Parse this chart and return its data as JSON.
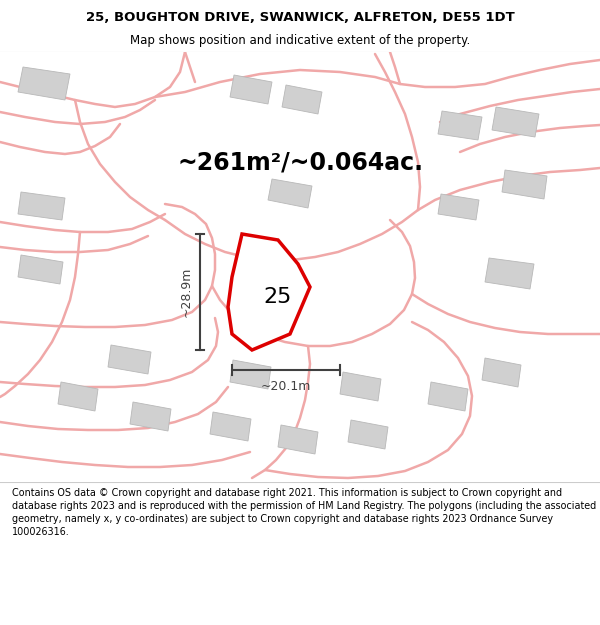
{
  "title_line1": "25, BOUGHTON DRIVE, SWANWICK, ALFRETON, DE55 1DT",
  "title_line2": "Map shows position and indicative extent of the property.",
  "area_text": "~261m²/~0.064ac.",
  "label_number": "25",
  "dim_height": "~28.9m",
  "dim_width": "~20.1m",
  "footer_text": "Contains OS data © Crown copyright and database right 2021. This information is subject to Crown copyright and database rights 2023 and is reproduced with the permission of HM Land Registry. The polygons (including the associated geometry, namely x, y co-ordinates) are subject to Crown copyright and database rights 2023 Ordnance Survey 100026316.",
  "bg_color": "#ffffff",
  "map_bg": "#f5f5f5",
  "road_color": "#f0a8a8",
  "building_fill": "#d0d0d0",
  "building_edge": "#b8b8b8",
  "highlight_fill": "#ffffff",
  "highlight_edge": "#dd0000",
  "dim_color": "#404040",
  "divider_color": "#cccccc",
  "title_fontsize": 9.5,
  "subtitle_fontsize": 8.5,
  "area_fontsize": 17,
  "label_fontsize": 16,
  "dim_fontsize": 9,
  "footer_fontsize": 6.9
}
